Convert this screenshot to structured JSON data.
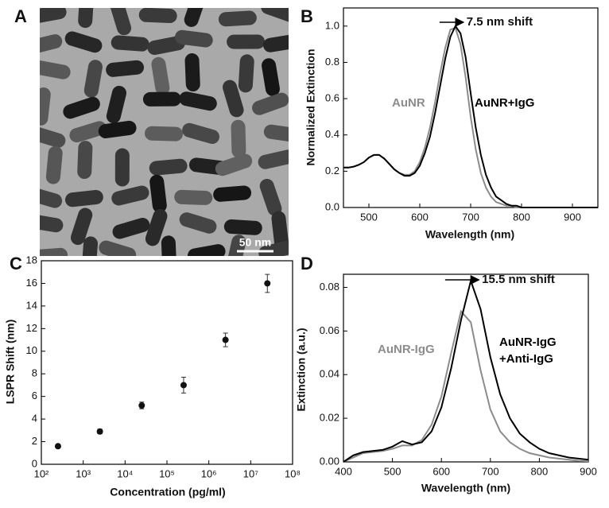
{
  "panel_a": {
    "panel_label": "A",
    "scale_bar": "50 nm"
  },
  "chart_data": [
    {
      "type": "line",
      "panel_label": "B",
      "xlabel": "Wavelength (nm)",
      "ylabel": "Normalized Extinction",
      "annotation": "7.5 nm shift",
      "x": [
        450,
        460,
        470,
        480,
        490,
        500,
        510,
        520,
        530,
        540,
        550,
        560,
        570,
        580,
        590,
        600,
        610,
        620,
        630,
        640,
        650,
        660,
        670,
        680,
        690,
        700,
        710,
        720,
        730,
        740,
        750,
        760,
        770,
        780,
        790,
        800,
        810,
        820,
        830,
        840,
        850,
        860,
        870,
        880,
        890,
        900,
        910,
        920,
        930,
        940,
        950
      ],
      "series": [
        {
          "name": "AuNR",
          "color": "#8c8c8c",
          "values": [
            0.22,
            0.22,
            0.225,
            0.235,
            0.25,
            0.275,
            0.29,
            0.29,
            0.27,
            0.24,
            0.21,
            0.19,
            0.18,
            0.18,
            0.2,
            0.25,
            0.33,
            0.44,
            0.58,
            0.74,
            0.88,
            0.98,
            0.99,
            0.9,
            0.72,
            0.5,
            0.32,
            0.19,
            0.11,
            0.06,
            0.03,
            0.02,
            0.01,
            0.01,
            0,
            0,
            0,
            0,
            0,
            0,
            0,
            0,
            0,
            0,
            0,
            0,
            0,
            0,
            0,
            0,
            0
          ]
        },
        {
          "name": "AuNR+IgG",
          "color": "#000000",
          "values": [
            0.22,
            0.22,
            0.225,
            0.235,
            0.25,
            0.275,
            0.29,
            0.29,
            0.27,
            0.24,
            0.21,
            0.19,
            0.175,
            0.175,
            0.19,
            0.23,
            0.3,
            0.39,
            0.52,
            0.67,
            0.82,
            0.94,
            1.0,
            0.96,
            0.83,
            0.63,
            0.44,
            0.29,
            0.18,
            0.11,
            0.06,
            0.04,
            0.02,
            0.01,
            0.01,
            0,
            0,
            0,
            0,
            0,
            0,
            0,
            0,
            0,
            0,
            0,
            0,
            0,
            0,
            0,
            0
          ]
        }
      ],
      "xlim": [
        450,
        950
      ],
      "xticks": [
        500,
        600,
        700,
        800,
        900
      ],
      "ylim": [
        0,
        1.1
      ],
      "yticks": [
        {
          "value": 0,
          "label": "0.0"
        },
        0.2,
        0.4,
        0.6,
        0.8,
        {
          "value": 1,
          "label": "1.0"
        }
      ]
    },
    {
      "type": "scatter",
      "panel_label": "C",
      "xlabel": "Concentration (pg/ml)",
      "ylabel": "LSPR Shift (nm)",
      "xlog": true,
      "x": [
        250,
        2500,
        25000,
        250000,
        2500000,
        25000000
      ],
      "values": [
        1.6,
        2.9,
        5.2,
        7.0,
        11.0,
        16.0
      ],
      "errors": [
        0.1,
        0.2,
        0.3,
        0.7,
        0.6,
        0.8
      ],
      "color": "#111111",
      "xlim": [
        100,
        100000000
      ],
      "xticks": [
        {
          "value": 100,
          "label": "10²"
        },
        {
          "value": 1000,
          "label": "10³"
        },
        {
          "value": 10000,
          "label": "10⁴"
        },
        {
          "value": 100000,
          "label": "10⁵"
        },
        {
          "value": 1000000,
          "label": "10⁶"
        },
        {
          "value": 10000000,
          "label": "10⁷"
        },
        {
          "value": 100000000,
          "label": "10⁸"
        }
      ],
      "ylim": [
        0,
        18
      ],
      "yticks": [
        0,
        2,
        4,
        6,
        8,
        10,
        12,
        14,
        16,
        18
      ]
    },
    {
      "type": "line",
      "panel_label": "D",
      "xlabel": "Wavelength (nm)",
      "ylabel": "Extinction (a.u.)",
      "annotation": "15.5 nm shift",
      "x": [
        400,
        420,
        440,
        460,
        480,
        500,
        520,
        540,
        560,
        580,
        600,
        620,
        640,
        660,
        680,
        700,
        720,
        740,
        760,
        780,
        800,
        820,
        840,
        860,
        880,
        900
      ],
      "series": [
        {
          "name": "AuNR-IgG",
          "color": "#8c8c8c",
          "values": [
            0,
            0.002,
            0.004,
            0.0045,
            0.005,
            0.006,
            0.0075,
            0.0075,
            0.01,
            0.017,
            0.03,
            0.05,
            0.069,
            0.064,
            0.042,
            0.024,
            0.014,
            0.009,
            0.006,
            0.004,
            0.003,
            0.002,
            0.0015,
            0.001,
            0.0005,
            0.0003
          ]
        },
        {
          "name": "AuNR-IgG +Anti-IgG",
          "color": "#000000",
          "values": [
            0,
            0.003,
            0.0045,
            0.005,
            0.0055,
            0.007,
            0.0095,
            0.008,
            0.009,
            0.014,
            0.025,
            0.043,
            0.065,
            0.083,
            0.07,
            0.048,
            0.031,
            0.02,
            0.013,
            0.009,
            0.006,
            0.004,
            0.003,
            0.002,
            0.0015,
            0.001
          ]
        }
      ],
      "xlim": [
        400,
        900
      ],
      "xticks": [
        400,
        500,
        600,
        700,
        800,
        900
      ],
      "ylim": [
        0,
        0.086
      ],
      "yticks": [
        {
          "value": 0,
          "label": "0.00"
        },
        0.02,
        0.04,
        0.06,
        0.08
      ]
    }
  ]
}
